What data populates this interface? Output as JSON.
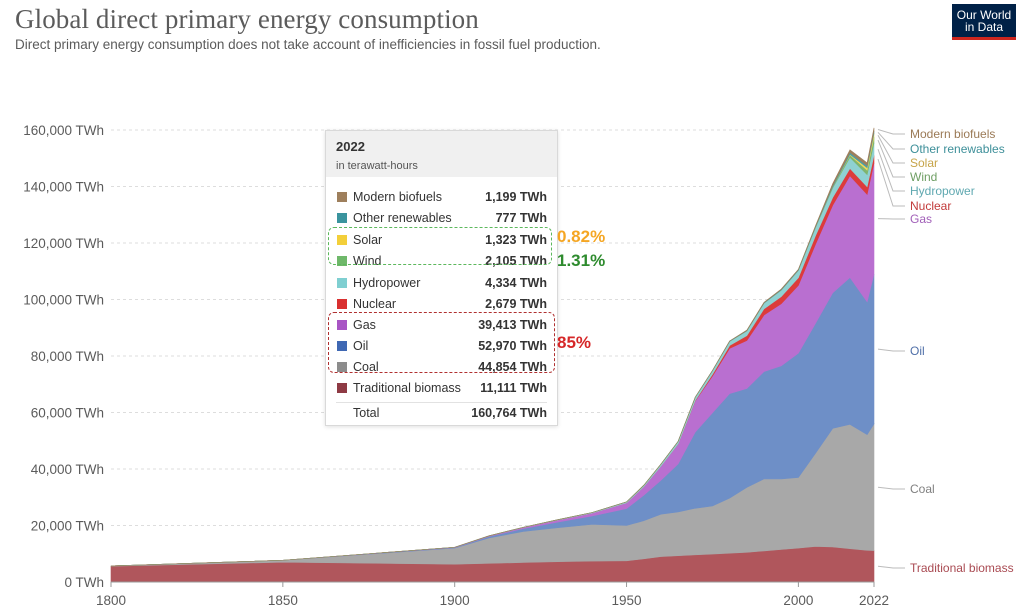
{
  "header": {
    "title": "Global direct primary energy consumption",
    "subtitle": "Direct primary energy consumption does not take account of inefficiencies in fossil fuel production.",
    "logo_line1": "Our World",
    "logo_line2": "in Data"
  },
  "chart_data": {
    "type": "area",
    "stacked": true,
    "unit": "TWh",
    "x": [
      1800,
      1850,
      1900,
      1910,
      1920,
      1930,
      1940,
      1950,
      1955,
      1960,
      1965,
      1970,
      1975,
      1980,
      1985,
      1990,
      1995,
      2000,
      2005,
      2010,
      2015,
      2020,
      2022
    ],
    "xticks": [
      1800,
      1850,
      1900,
      1950,
      2000,
      2022
    ],
    "ylim": [
      0,
      160000
    ],
    "yticks": [
      0,
      20000,
      40000,
      60000,
      80000,
      100000,
      120000,
      140000,
      160000
    ],
    "ytick_labels": [
      "0 TWh",
      "20,000 TWh",
      "40,000 TWh",
      "60,000 TWh",
      "80,000 TWh",
      "100,000 TWh",
      "120,000 TWh",
      "140,000 TWh",
      "160,000 TWh"
    ],
    "grid": true,
    "legend_position": "right",
    "series": [
      {
        "name": "Traditional biomass",
        "color": "#b0565c",
        "values": [
          5600,
          7000,
          6300,
          6600,
          6900,
          7200,
          7400,
          7500,
          8200,
          9000,
          9300,
          9600,
          9900,
          10200,
          10500,
          11000,
          11500,
          12000,
          12600,
          12400,
          11800,
          11200,
          11111
        ]
      },
      {
        "name": "Coal",
        "color": "#a8a8a8",
        "values": [
          100,
          700,
          5700,
          9000,
          11000,
          12000,
          13000,
          12500,
          13500,
          15000,
          15500,
          16500,
          17000,
          19500,
          23000,
          25500,
          25000,
          25000,
          33000,
          42000,
          44000,
          41000,
          44854
        ]
      },
      {
        "name": "Oil",
        "color": "#6e8fc7",
        "values": [
          0,
          0,
          200,
          500,
          1000,
          2000,
          3000,
          6000,
          9000,
          12000,
          17000,
          27000,
          33000,
          37000,
          35000,
          38000,
          40000,
          44000,
          46000,
          48000,
          52000,
          47000,
          52970
        ]
      },
      {
        "name": "Gas",
        "color": "#b96fd0",
        "values": [
          0,
          0,
          100,
          200,
          400,
          700,
          1000,
          2000,
          3000,
          5000,
          7000,
          11000,
          13000,
          16000,
          17000,
          20000,
          22000,
          24000,
          28000,
          31000,
          36000,
          38000,
          39413
        ]
      },
      {
        "name": "Nuclear",
        "color": "#dc3b3b",
        "values": [
          0,
          0,
          0,
          0,
          0,
          0,
          0,
          0,
          0,
          10,
          50,
          200,
          600,
          1000,
          1700,
          2200,
          2500,
          2700,
          3000,
          2700,
          2600,
          2700,
          2679
        ]
      },
      {
        "name": "Hydropower",
        "color": "#8fd1d2",
        "values": [
          0,
          0,
          0,
          40,
          80,
          150,
          200,
          350,
          500,
          700,
          900,
          1100,
          1300,
          1500,
          1700,
          2000,
          2300,
          2600,
          2900,
          3400,
          3900,
          4300,
          4334
        ]
      },
      {
        "name": "Wind",
        "color": "#7fb56f",
        "values": [
          0,
          0,
          0,
          0,
          0,
          0,
          0,
          0,
          0,
          0,
          0,
          0,
          0,
          0,
          0,
          5,
          10,
          30,
          100,
          340,
          830,
          1590,
          2105
        ]
      },
      {
        "name": "Solar",
        "color": "#f3d85a",
        "values": [
          0,
          0,
          0,
          0,
          0,
          0,
          0,
          0,
          0,
          0,
          0,
          0,
          0,
          0,
          0,
          0,
          0,
          1,
          4,
          33,
          250,
          850,
          1323
        ]
      },
      {
        "name": "Other renewables",
        "color": "#4a9ea8",
        "values": [
          0,
          0,
          0,
          0,
          0,
          0,
          0,
          0,
          0,
          10,
          20,
          40,
          60,
          90,
          130,
          170,
          210,
          250,
          330,
          490,
          630,
          730,
          777
        ]
      },
      {
        "name": "Modern biofuels",
        "color": "#9e7f5c",
        "values": [
          0,
          0,
          0,
          0,
          0,
          0,
          0,
          0,
          0,
          0,
          0,
          0,
          0,
          30,
          120,
          140,
          160,
          120,
          220,
          700,
          950,
          1000,
          1199
        ]
      }
    ],
    "legend_colors": {
      "Modern biofuels": "#9b7a56",
      "Other renewables": "#3d8f99",
      "Solar": "#c6a449",
      "Wind": "#6e9e63",
      "Hydropower": "#5fa8b0",
      "Nuclear": "#c23b3b",
      "Gas": "#a15fb8",
      "Oil": "#4f6fa8",
      "Coal": "#808080",
      "Traditional biomass": "#a94a52"
    }
  },
  "tooltip": {
    "year": "2022",
    "unit_label": "in terawatt-hours",
    "rows": [
      {
        "name": "Modern biofuels",
        "value": "1,199 TWh",
        "color": "#9e7f5c"
      },
      {
        "name": "Other renewables",
        "value": "777 TWh",
        "color": "#3a949e"
      },
      {
        "name": "Solar",
        "value": "1,323 TWh",
        "color": "#f3cf3a"
      },
      {
        "name": "Wind",
        "value": "2,105 TWh",
        "color": "#6fb86a"
      },
      {
        "name": "Hydropower",
        "value": "4,334 TWh",
        "color": "#7fcfd1"
      },
      {
        "name": "Nuclear",
        "value": "2,679 TWh",
        "color": "#d93030"
      },
      {
        "name": "Gas",
        "value": "39,413 TWh",
        "color": "#a855c4"
      },
      {
        "name": "Oil",
        "value": "52,970 TWh",
        "color": "#3f68b3"
      },
      {
        "name": "Coal",
        "value": "44,854 TWh",
        "color": "#8c8c8c"
      },
      {
        "name": "Traditional biomass",
        "value": "11,111 TWh",
        "color": "#8e3a44"
      }
    ],
    "total_label": "Total",
    "total_value": "160,764 TWh"
  },
  "annotations": {
    "solar_pct": "0.82%",
    "wind_pct": "1.31%",
    "fossil_pct": "85%"
  }
}
